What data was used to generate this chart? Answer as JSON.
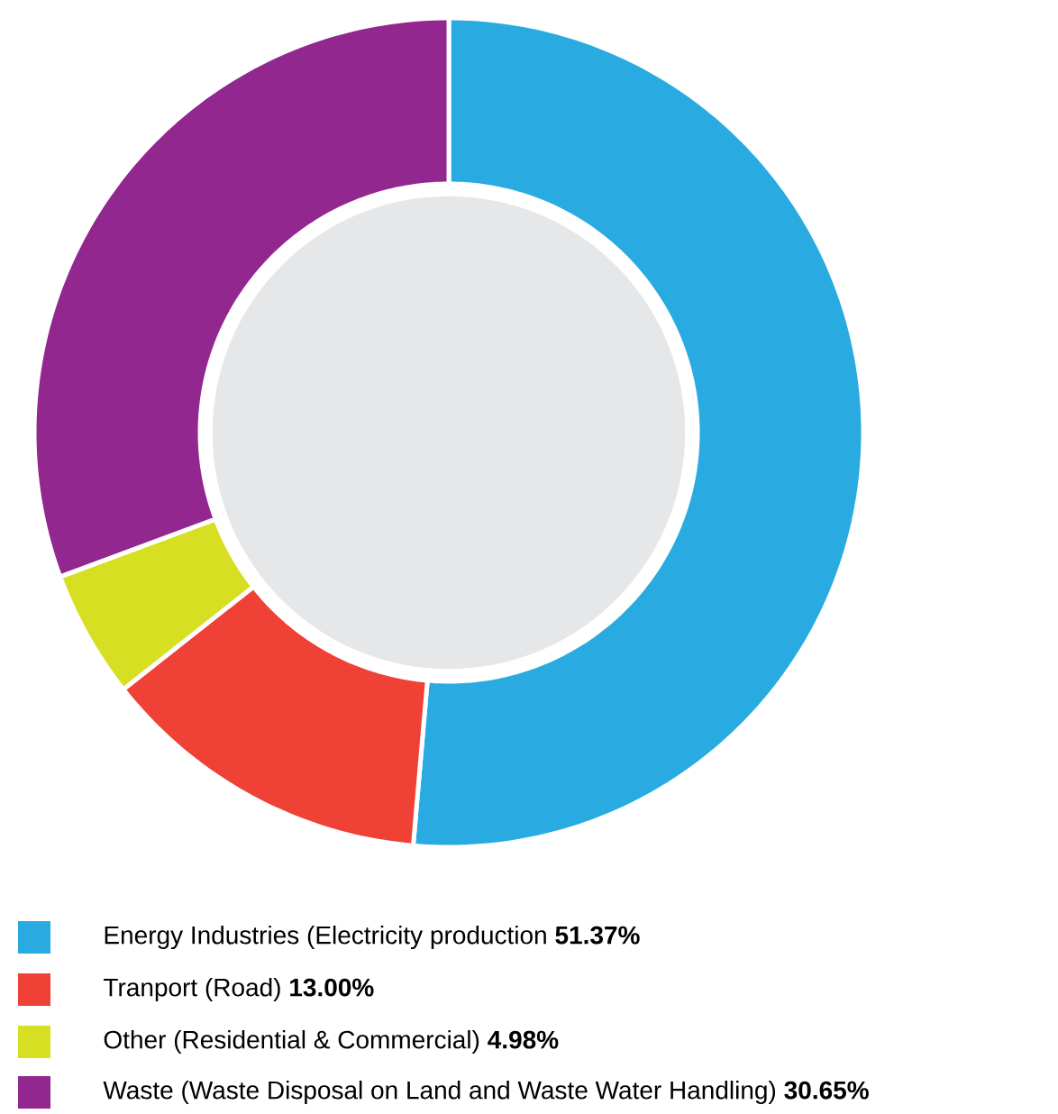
{
  "chart_data": {
    "type": "donut",
    "categories": [
      "Energy Industries (Electricity production",
      "Tranport (Road)",
      "Other (Residential & Commercial)",
      "Waste (Waste Disposal on Land and Waste Water Handling)"
    ],
    "values": [
      51.37,
      13.0,
      4.98,
      30.65
    ],
    "value_labels": [
      "51.37%",
      "13.00%",
      "4.98%",
      "30.65%"
    ],
    "colors": [
      "#29abe2",
      "#ef4136",
      "#d7df23",
      "#92278f"
    ],
    "legend": "bottom"
  }
}
